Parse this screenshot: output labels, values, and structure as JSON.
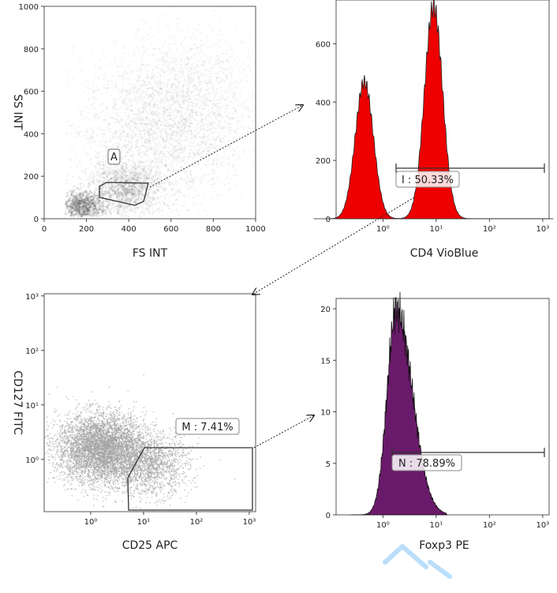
{
  "chart_data": [
    {
      "type": "scatter",
      "panel": "top-left",
      "xlabel": "FS INT",
      "ylabel": "SS INT",
      "xlim": [
        0,
        1000
      ],
      "ylim": [
        0,
        1000
      ],
      "xticks": [
        "0",
        "200",
        "400",
        "600",
        "800",
        "1000"
      ],
      "yticks": [
        "0",
        "200",
        "400",
        "600",
        "800",
        "1000"
      ],
      "gate": {
        "name": "A",
        "shape": "polygon",
        "points": [
          [
            260,
            150
          ],
          [
            330,
            160
          ],
          [
            495,
            155
          ],
          [
            475,
            100
          ],
          [
            400,
            75
          ],
          [
            255,
            90
          ]
        ]
      },
      "density_note": "grayscale density plot"
    },
    {
      "type": "area",
      "panel": "top-right",
      "xlabel": "CD4 VioBlue",
      "scale": "log",
      "xticks": [
        "10⁰",
        "10¹",
        "10²",
        "10³"
      ],
      "yticks": [
        "0",
        "200",
        "400",
        "600"
      ],
      "ylim": [
        0,
        750
      ],
      "peaks": [
        {
          "center_log": -0.35,
          "height": 470
        },
        {
          "center_log": 0.95,
          "height": 730
        }
      ],
      "gate": {
        "label": "I : 50.33%",
        "range_log": [
          0.0,
          3.0
        ]
      },
      "fill": "#ee0000"
    },
    {
      "type": "scatter",
      "panel": "bottom-left",
      "xlabel": "CD25 APC",
      "ylabel": "CD127 FITC",
      "scale": "log",
      "xticks": [
        "10⁰",
        "10¹",
        "10²",
        "10³"
      ],
      "yticks": [
        "10⁰",
        "10¹",
        "10²",
        "10³"
      ],
      "gate": {
        "label": "M : 7.41%"
      },
      "color": "#a0a0a0"
    },
    {
      "type": "area",
      "panel": "bottom-right",
      "xlabel": "Foxp3 PE",
      "scale": "log",
      "xticks": [
        "10⁰",
        "10¹",
        "10²",
        "10³"
      ],
      "yticks": [
        "0",
        "5",
        "10",
        "15",
        "20"
      ],
      "ylim": [
        0,
        21
      ],
      "peaks": [
        {
          "center_log": 0.25,
          "height": 20
        }
      ],
      "gate": {
        "label": "N : 78.89%",
        "range_log": [
          0.0,
          3.0
        ]
      },
      "fill": "#6a1a6a"
    }
  ],
  "colors": {
    "frame": "#555555",
    "cd4_fill": "#ee0000",
    "foxp3_fill": "#6a1a6a",
    "scatter_gray": "#a0a0a0",
    "watermark": "#3aa0f0"
  }
}
